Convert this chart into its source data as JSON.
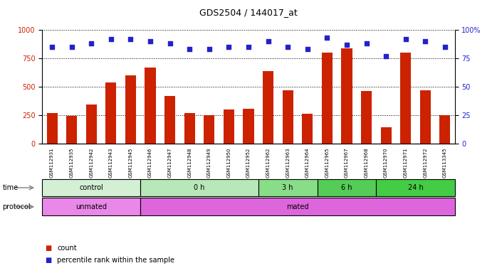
{
  "title": "GDS2504 / 144017_at",
  "samples": [
    "GSM112931",
    "GSM112935",
    "GSM112942",
    "GSM112943",
    "GSM112945",
    "GSM112946",
    "GSM112947",
    "GSM112948",
    "GSM112949",
    "GSM112950",
    "GSM112952",
    "GSM112962",
    "GSM112963",
    "GSM112964",
    "GSM112965",
    "GSM112967",
    "GSM112968",
    "GSM112970",
    "GSM112971",
    "GSM112972",
    "GSM113345"
  ],
  "counts": [
    270,
    245,
    345,
    540,
    600,
    670,
    420,
    265,
    250,
    300,
    305,
    640,
    470,
    260,
    800,
    840,
    460,
    140,
    800,
    470,
    250
  ],
  "percentiles": [
    85,
    85,
    88,
    92,
    92,
    90,
    88,
    83,
    83,
    85,
    85,
    90,
    85,
    83,
    93,
    87,
    88,
    77,
    92,
    90,
    85
  ],
  "bar_color": "#cc2200",
  "dot_color": "#2222cc",
  "ylim_left": [
    0,
    1000
  ],
  "ylim_right": [
    0,
    100
  ],
  "yticks_left": [
    0,
    250,
    500,
    750,
    1000
  ],
  "yticks_right": [
    0,
    25,
    50,
    75,
    100
  ],
  "grid_lines": [
    250,
    500,
    750,
    1000
  ],
  "time_groups": [
    {
      "label": "control",
      "start": 0,
      "end": 5,
      "color": "#d4f0d4"
    },
    {
      "label": "0 h",
      "start": 5,
      "end": 11,
      "color": "#b8e8b8"
    },
    {
      "label": "3 h",
      "start": 11,
      "end": 14,
      "color": "#88dd88"
    },
    {
      "label": "6 h",
      "start": 14,
      "end": 17,
      "color": "#55cc55"
    },
    {
      "label": "24 h",
      "start": 17,
      "end": 21,
      "color": "#44cc44"
    }
  ],
  "protocol_groups": [
    {
      "label": "unmated",
      "start": 0,
      "end": 5,
      "color": "#e988e9"
    },
    {
      "label": "mated",
      "start": 5,
      "end": 21,
      "color": "#dd66dd"
    }
  ],
  "n": 21,
  "background_color": "#ffffff"
}
